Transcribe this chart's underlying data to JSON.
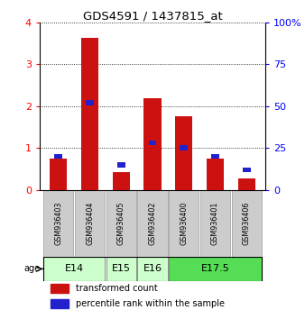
{
  "title": "GDS4591 / 1437815_at",
  "samples": [
    "GSM936403",
    "GSM936404",
    "GSM936405",
    "GSM936402",
    "GSM936400",
    "GSM936401",
    "GSM936406"
  ],
  "transformed_counts": [
    0.75,
    3.62,
    0.43,
    2.18,
    1.75,
    0.75,
    0.28
  ],
  "percentile_ranks_pct": [
    20,
    52,
    15,
    28,
    25,
    20,
    12
  ],
  "age_groups": [
    {
      "label": "E14",
      "indices": [
        0,
        1
      ],
      "color": "#ccffcc"
    },
    {
      "label": "E15",
      "indices": [
        2
      ],
      "color": "#ccffcc"
    },
    {
      "label": "E16",
      "indices": [
        3
      ],
      "color": "#ccffcc"
    },
    {
      "label": "E17.5",
      "indices": [
        4,
        5,
        6
      ],
      "color": "#55dd55"
    }
  ],
  "ylim_left": [
    0,
    4
  ],
  "ylim_right": [
    0,
    100
  ],
  "yticks_left": [
    0,
    1,
    2,
    3,
    4
  ],
  "yticks_right": [
    0,
    25,
    50,
    75,
    100
  ],
  "yticklabels_left": [
    "0",
    "1",
    "2",
    "3",
    "4"
  ],
  "yticklabels_right": [
    "0",
    "25",
    "50",
    "75",
    "100%"
  ],
  "bar_color_red": "#cc1111",
  "bar_color_blue": "#2222cc",
  "legend_red": "transformed count",
  "legend_blue": "percentile rank within the sample",
  "age_label": "age",
  "background_color": "#ffffff",
  "sample_box_color": "#cccccc",
  "bar_width": 0.55
}
